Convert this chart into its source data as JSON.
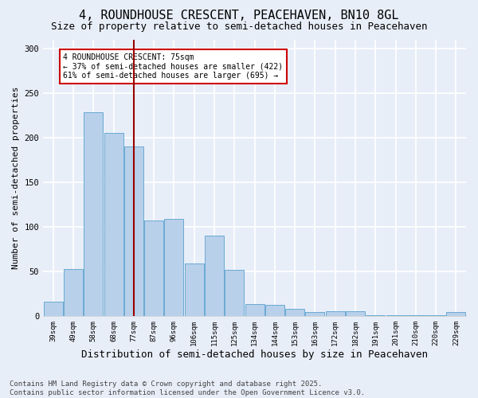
{
  "title": "4, ROUNDHOUSE CRESCENT, PEACEHAVEN, BN10 8GL",
  "subtitle": "Size of property relative to semi-detached houses in Peacehaven",
  "xlabel": "Distribution of semi-detached houses by size in Peacehaven",
  "ylabel": "Number of semi-detached properties",
  "categories": [
    "39sqm",
    "49sqm",
    "58sqm",
    "68sqm",
    "77sqm",
    "87sqm",
    "96sqm",
    "106sqm",
    "115sqm",
    "125sqm",
    "134sqm",
    "144sqm",
    "153sqm",
    "163sqm",
    "172sqm",
    "182sqm",
    "191sqm",
    "201sqm",
    "210sqm",
    "220sqm",
    "229sqm"
  ],
  "values": [
    16,
    53,
    229,
    205,
    190,
    107,
    109,
    59,
    90,
    52,
    13,
    12,
    8,
    4,
    5,
    5,
    1,
    1,
    1,
    1,
    4
  ],
  "bar_color": "#b8d0ea",
  "bar_edge_color": "#6aaad4",
  "vline_x": 4,
  "vline_color": "#990000",
  "annotation_text": "4 ROUNDHOUSE CRESCENT: 75sqm\n← 37% of semi-detached houses are smaller (422)\n61% of semi-detached houses are larger (695) →",
  "annotation_box_color": "#ffffff",
  "annotation_box_edge": "#cc0000",
  "ylim": [
    0,
    310
  ],
  "yticks": [
    0,
    50,
    100,
    150,
    200,
    250,
    300
  ],
  "footer_line1": "Contains HM Land Registry data © Crown copyright and database right 2025.",
  "footer_line2": "Contains public sector information licensed under the Open Government Licence v3.0.",
  "background_color": "#e8eef8",
  "grid_color": "#ffffff",
  "title_fontsize": 11,
  "subtitle_fontsize": 9,
  "axis_label_fontsize": 8,
  "tick_fontsize": 6.5,
  "footer_fontsize": 6.5
}
